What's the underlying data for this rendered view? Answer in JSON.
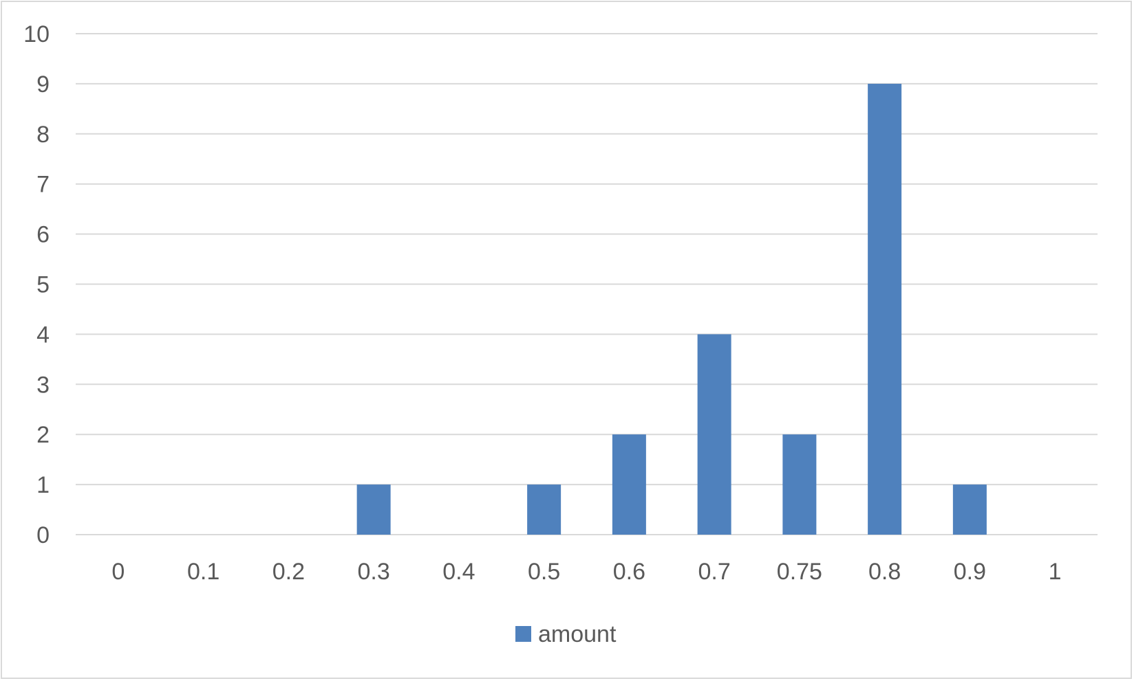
{
  "chart_data": {
    "type": "bar",
    "categories": [
      "0",
      "0.1",
      "0.2",
      "0.3",
      "0.4",
      "0.5",
      "0.6",
      "0.7",
      "0.75",
      "0.8",
      "0.9",
      "1"
    ],
    "series": [
      {
        "name": "amount",
        "values": [
          0,
          0,
          0,
          1,
          0,
          1,
          2,
          4,
          2,
          9,
          1,
          0
        ],
        "color": "#4f81bd"
      }
    ],
    "title": "",
    "xlabel": "",
    "ylabel": "",
    "ylim": [
      0,
      10
    ],
    "yticks": [
      "0",
      "1",
      "2",
      "3",
      "4",
      "5",
      "6",
      "7",
      "8",
      "9",
      "10"
    ],
    "grid": true,
    "legend_position": "bottom"
  },
  "colors": {
    "gridline": "#d9d9d9",
    "text": "#595959"
  }
}
